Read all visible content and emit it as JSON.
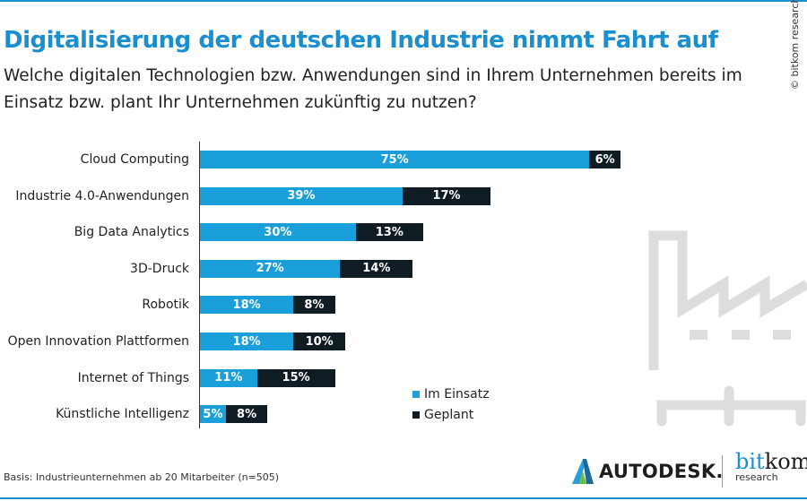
{
  "title": "Digitalisierung der deutschen Industrie nimmt Fahrt auf",
  "subtitle": "Welche digitalen Technologien  bzw. Anwendungen sind in Ihrem Unternehmen bereits im Einsatz bzw. plant Ihr Unternehmen zukünftig zu nutzen?",
  "copyright": "© bitkom research",
  "basis": "Basis: Industrieunternehmen ab 20 Mitarbeiter  (n=505)",
  "logos": {
    "autodesk": "AUTODESK.",
    "bitkom_a": "bit",
    "bitkom_b": "kom",
    "bitkom_research": "research"
  },
  "colors": {
    "im_einsatz": "#1a9fdb",
    "geplant": "#0f1c24",
    "title": "#1a8fcf"
  },
  "chart_data": {
    "type": "bar",
    "orientation": "horizontal-stacked",
    "categories": [
      "Cloud Computing",
      "Industrie 4.0-Anwendungen",
      "Big Data Analytics",
      "3D-Druck",
      "Robotik",
      "Open Innovation Plattformen",
      "Internet of Things",
      "Künstliche Intelligenz"
    ],
    "series": [
      {
        "name": "Im Einsatz",
        "values": [
          75,
          39,
          30,
          27,
          18,
          18,
          11,
          5
        ],
        "labels": [
          "75%",
          "39%",
          "30%",
          "27%",
          "18%",
          "18%",
          "11%",
          "5%"
        ]
      },
      {
        "name": "Geplant",
        "values": [
          6,
          17,
          13,
          14,
          8,
          10,
          15,
          8
        ],
        "labels": [
          "6%",
          "17%",
          "13%",
          "14%",
          "8%",
          "10%",
          "15%",
          "8%"
        ]
      }
    ],
    "legend_placement": "bottom-right",
    "grid": false
  }
}
